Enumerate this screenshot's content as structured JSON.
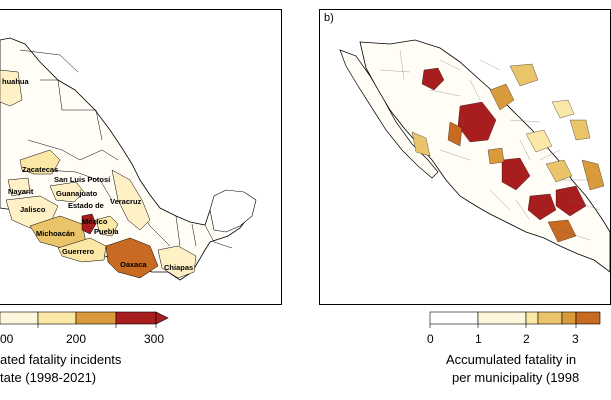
{
  "panel_a": {
    "label": "",
    "state_labels": [
      "huahua",
      "Zacatecas",
      "San Luis Potosí",
      "Nayarit",
      "Guanajuato",
      "Jalisco",
      "Estado de",
      "México",
      "Michoacán",
      "Puebla",
      "Veracruz",
      "Guerrero",
      "Oaxaca",
      "Chiapas"
    ],
    "legend": {
      "tick_labels": [
        "00",
        "100",
        "200",
        "300"
      ],
      "caption_line1": "ated fatality incidents",
      "caption_line2": "tate (1998-2021)"
    }
  },
  "panel_b": {
    "label": "b)",
    "legend": {
      "tick_labels": [
        "0",
        "1",
        "2",
        "3"
      ],
      "caption_line1": "Accumulated fatality in",
      "caption_line2": "per municipality (1998"
    }
  },
  "colors": {
    "scale": [
      "#fff7dc",
      "#fbe7a6",
      "#e9c46a",
      "#d99a3b",
      "#c96a22",
      "#a81e1e"
    ],
    "outline": "#000000"
  }
}
